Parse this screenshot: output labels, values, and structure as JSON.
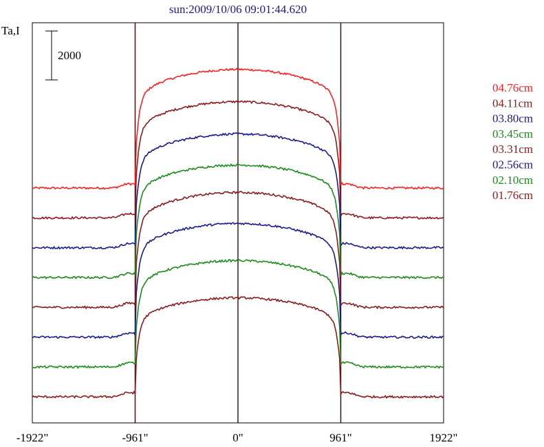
{
  "chart_data": {
    "type": "line",
    "title": "sun:2009/10/06 09:01:44.620",
    "ylabel": "Ta,I",
    "xlabel": "",
    "x_ticks": [
      "-1922\"",
      "-961\"",
      "0\"",
      "961\"",
      "1922\""
    ],
    "x_tick_values": [
      -1922,
      -961,
      0,
      961,
      1922
    ],
    "xlim": [
      -1922,
      1922
    ],
    "scale_bar": {
      "label": "2000",
      "value": 2000
    },
    "vertical_lines_at": [
      -961,
      0,
      961
    ],
    "series": [
      {
        "name": "04.76cm",
        "color": "#ff2020",
        "baseline_index": 0,
        "peak": 4850
      },
      {
        "name": "04.11cm",
        "color": "#8b1a1a",
        "baseline_index": 1,
        "peak": 4750
      },
      {
        "name": "03.80cm",
        "color": "#1a1a8c",
        "baseline_index": 2,
        "peak": 4650
      },
      {
        "name": "03.45cm",
        "color": "#1a8c1a",
        "baseline_index": 3,
        "peak": 4600
      },
      {
        "name": "03.31cm",
        "color": "#8b1a1a",
        "baseline_index": 4,
        "peak": 4700
      },
      {
        "name": "02.56cm",
        "color": "#1a1a8c",
        "baseline_index": 5,
        "peak": 4650
      },
      {
        "name": "02.10cm",
        "color": "#1a8c1a",
        "baseline_index": 6,
        "peak": 4350
      },
      {
        "name": "01.76cm",
        "color": "#8b1a1a",
        "baseline_index": 7,
        "peak": 4050
      }
    ]
  }
}
